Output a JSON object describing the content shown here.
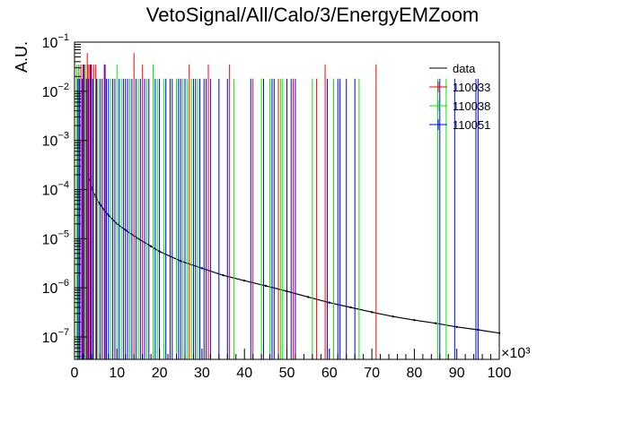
{
  "chart_data": {
    "type": "line",
    "title": "VetoSignal/All/Calo/3/EnergyEMZoom",
    "xlabel": "",
    "ylabel": "A.U.",
    "x_multiplier_label": "×10³",
    "xlim": [
      0,
      100
    ],
    "ylim": [
      3.5e-08,
      0.1
    ],
    "yscale": "log",
    "legend_position": "top-right",
    "x_ticks": [
      0,
      10,
      20,
      30,
      40,
      50,
      60,
      70,
      80,
      90,
      100
    ],
    "y_ticks": [
      {
        "value": 1e-07,
        "base": "10",
        "exp": "−7"
      },
      {
        "value": 1e-06,
        "base": "10",
        "exp": "−6"
      },
      {
        "value": 1e-05,
        "base": "10",
        "exp": "−5"
      },
      {
        "value": 0.0001,
        "base": "10",
        "exp": "−4"
      },
      {
        "value": 0.001,
        "base": "10",
        "exp": "−3"
      },
      {
        "value": 0.01,
        "base": "10",
        "exp": "−2"
      },
      {
        "value": 0.1,
        "base": "10",
        "exp": "−1"
      }
    ],
    "series": [
      {
        "name": "data",
        "color": "#000000",
        "style": "histogram",
        "x": [
          3.5,
          4,
          5,
          6,
          7,
          8,
          10,
          12,
          15,
          18,
          20,
          25,
          30,
          35,
          40,
          45,
          50,
          55,
          60,
          65,
          70,
          75,
          80,
          85,
          90,
          95,
          100
        ],
        "y": [
          0.00016,
          0.00011,
          7e-05,
          5e-05,
          3.8e-05,
          3e-05,
          2e-05,
          1.5e-05,
          1e-05,
          7e-06,
          5.5e-06,
          3.5e-06,
          2.5e-06,
          1.8e-06,
          1.4e-06,
          1.1e-06,
          8.5e-07,
          6.5e-07,
          5e-07,
          4e-07,
          3.2e-07,
          2.6e-07,
          2.2e-07,
          1.9e-07,
          1.6e-07,
          1.4e-07,
          1.2e-07
        ]
      },
      {
        "name": "110033",
        "color": "#ff0000",
        "style": "spikes",
        "x": [
          1.0,
          1.5,
          2.0,
          2.5,
          3.0,
          3.2,
          3.6,
          4.0,
          4.5,
          5.0,
          7.0,
          14.0,
          16.0,
          27.0,
          31.5,
          36.5,
          42.0,
          48.0,
          51.5,
          57.0,
          59.0,
          71.0
        ],
        "y": [
          0.035,
          0.035,
          0.035,
          0.035,
          0.06,
          0.035,
          0.035,
          0.035,
          0.035,
          0.035,
          0.035,
          0.06,
          0.035,
          0.035,
          0.035,
          0.035,
          0.018,
          0.018,
          0.018,
          0.018,
          0.035,
          0.035
        ]
      },
      {
        "name": "110038",
        "color": "#00ee00",
        "style": "spikes",
        "x": [
          0.5,
          1.0,
          2.5,
          4.5,
          5.5,
          8.5,
          10.0,
          11.0,
          13.0,
          15.0,
          17.0,
          18.5,
          19.5,
          21.0,
          24.0,
          25.5,
          26.5,
          27.5,
          29.0,
          37.5,
          44.0,
          46.0,
          48.5,
          49.0,
          56.0,
          61.0,
          67.0,
          85.5,
          87.5
        ],
        "y": [
          0.035,
          0.035,
          0.035,
          0.018,
          0.018,
          0.018,
          0.035,
          0.018,
          0.018,
          0.018,
          0.018,
          0.035,
          0.018,
          0.018,
          0.018,
          0.018,
          0.018,
          0.018,
          0.018,
          0.018,
          0.018,
          0.018,
          0.018,
          0.018,
          0.018,
          0.018,
          0.018,
          0.018,
          0.018
        ]
      },
      {
        "name": "110051",
        "color": "#0000ff",
        "style": "spikes",
        "x": [
          0.8,
          1.2,
          1.8,
          2.2,
          2.8,
          3.3,
          3.8,
          4.3,
          5.2,
          6.0,
          6.5,
          7.2,
          7.5,
          8.0,
          9.0,
          9.5,
          10.5,
          11.5,
          12.0,
          12.5,
          13.5,
          14.5,
          15.5,
          16.5,
          17.5,
          19.0,
          20.0,
          21.5,
          22.5,
          23.0,
          24.5,
          25.0,
          26.0,
          28.0,
          28.5,
          29.5,
          30.5,
          31.0,
          32.0,
          34.0,
          36.0,
          41.5,
          44.5,
          46.5,
          47.0,
          50.0,
          51.0,
          52.0,
          59.5,
          62.0,
          62.5,
          64.0,
          66.0,
          86.0,
          89.5,
          94.5,
          95.0
        ],
        "y": [
          0.018,
          0.018,
          0.018,
          0.035,
          0.018,
          0.018,
          0.035,
          0.018,
          0.018,
          0.018,
          0.018,
          0.035,
          0.018,
          0.018,
          0.018,
          0.018,
          0.018,
          0.018,
          0.018,
          0.018,
          0.018,
          0.018,
          0.018,
          0.018,
          0.018,
          0.018,
          0.018,
          0.018,
          0.018,
          0.018,
          0.018,
          0.018,
          0.018,
          0.018,
          0.018,
          0.018,
          0.018,
          0.018,
          0.018,
          0.018,
          0.018,
          0.018,
          0.018,
          0.018,
          0.018,
          0.018,
          0.018,
          0.018,
          0.018,
          0.018,
          0.018,
          0.018,
          0.018,
          0.018,
          0.018,
          0.018,
          0.018
        ]
      }
    ]
  }
}
